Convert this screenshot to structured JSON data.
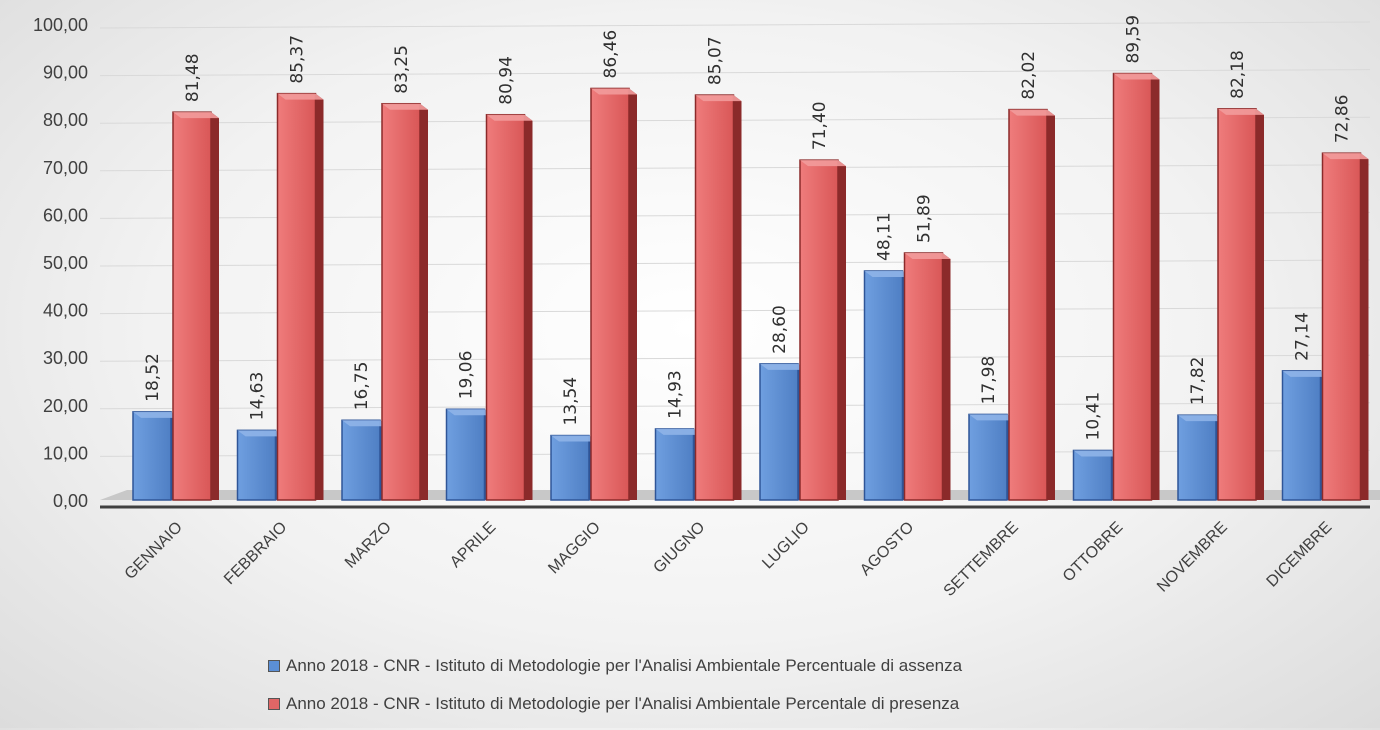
{
  "chart_data": {
    "type": "bar",
    "categories": [
      "GENNAIO",
      "FEBBRAIO",
      "MARZO",
      "APRILE",
      "MAGGIO",
      "GIUGNO",
      "LUGLIO",
      "AGOSTO",
      "SETTEMBRE",
      "OTTOBRE",
      "NOVEMBRE",
      "DICEMBRE"
    ],
    "series": [
      {
        "name": "Anno 2018 - CNR - Istituto di Metodologie per l'Analisi Ambientale Percentuale di assenza",
        "values": [
          18.52,
          14.63,
          16.75,
          19.06,
          13.54,
          14.93,
          28.6,
          48.11,
          17.98,
          10.41,
          17.82,
          27.14
        ],
        "labels": [
          "18,52",
          "14,63",
          "16,75",
          "19,06",
          "13,54",
          "14,93",
          "28,60",
          "48,11",
          "17,98",
          "10,41",
          "17,82",
          "27,14"
        ],
        "color": "#5b8fd6"
      },
      {
        "name": "Anno 2018 - CNR - Istituto di Metodologie per l'Analisi Ambientale Percentale di presenza",
        "values": [
          81.48,
          85.37,
          83.25,
          80.94,
          86.46,
          85.07,
          71.4,
          51.89,
          82.02,
          89.59,
          82.18,
          72.86
        ],
        "labels": [
          "81,48",
          "85,37",
          "83,25",
          "80,94",
          "86,46",
          "85,07",
          "71,40",
          "51,89",
          "82,02",
          "89,59",
          "82,18",
          "72,86"
        ],
        "color": "#e06666"
      }
    ],
    "y_ticks": [
      "0,00",
      "10,00",
      "20,00",
      "30,00",
      "40,00",
      "50,00",
      "60,00",
      "70,00",
      "80,00",
      "90,00",
      "100,00"
    ],
    "ylim": [
      0,
      100
    ],
    "grid": true,
    "legend_position": "bottom",
    "title": "",
    "xlabel": "",
    "ylabel": ""
  }
}
